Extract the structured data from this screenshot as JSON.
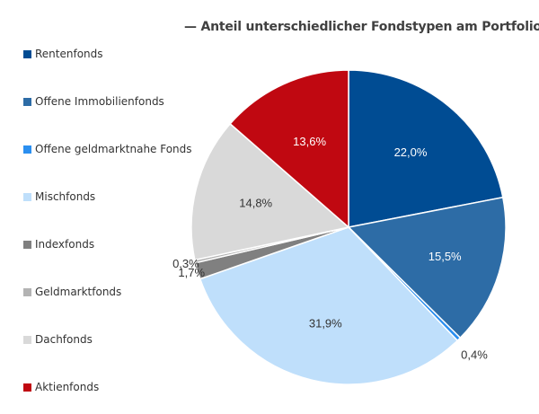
{
  "chart_data": {
    "type": "pie",
    "title": "— Anteil unterschiedlicher Fondstypen am Portfolio —",
    "legend_position": "left",
    "slices": [
      {
        "name": "Rentenfonds",
        "value": 22.0,
        "label": "22,0%",
        "color": "#004c93",
        "label_color": "#ffffff"
      },
      {
        "name": "Offene Immobilienfonds",
        "value": 15.5,
        "label": "15,5%",
        "color": "#2d6ca6",
        "label_color": "#ffffff"
      },
      {
        "name": "Offene geldmarktnahe Fonds",
        "value": 0.4,
        "label": "0,4%",
        "color": "#2b8ff0",
        "label_color": "#333333"
      },
      {
        "name": "Mischfonds",
        "value": 31.9,
        "label": "31,9%",
        "color": "#bfdffb",
        "label_color": "#333333"
      },
      {
        "name": "Indexfonds",
        "value": 1.7,
        "label": "1,7%",
        "color": "#808080",
        "label_color": "#333333"
      },
      {
        "name": "Geldmarktfonds",
        "value": 0.3,
        "label": "0,3%",
        "color": "#b3b3b3",
        "label_color": "#333333"
      },
      {
        "name": "Dachfonds",
        "value": 14.8,
        "label": "14,8%",
        "color": "#d9d9d9",
        "label_color": "#333333"
      },
      {
        "name": "Aktienfonds",
        "value": 13.6,
        "label": "13,6%",
        "color": "#c00811",
        "label_color": "#ffffff"
      }
    ]
  }
}
